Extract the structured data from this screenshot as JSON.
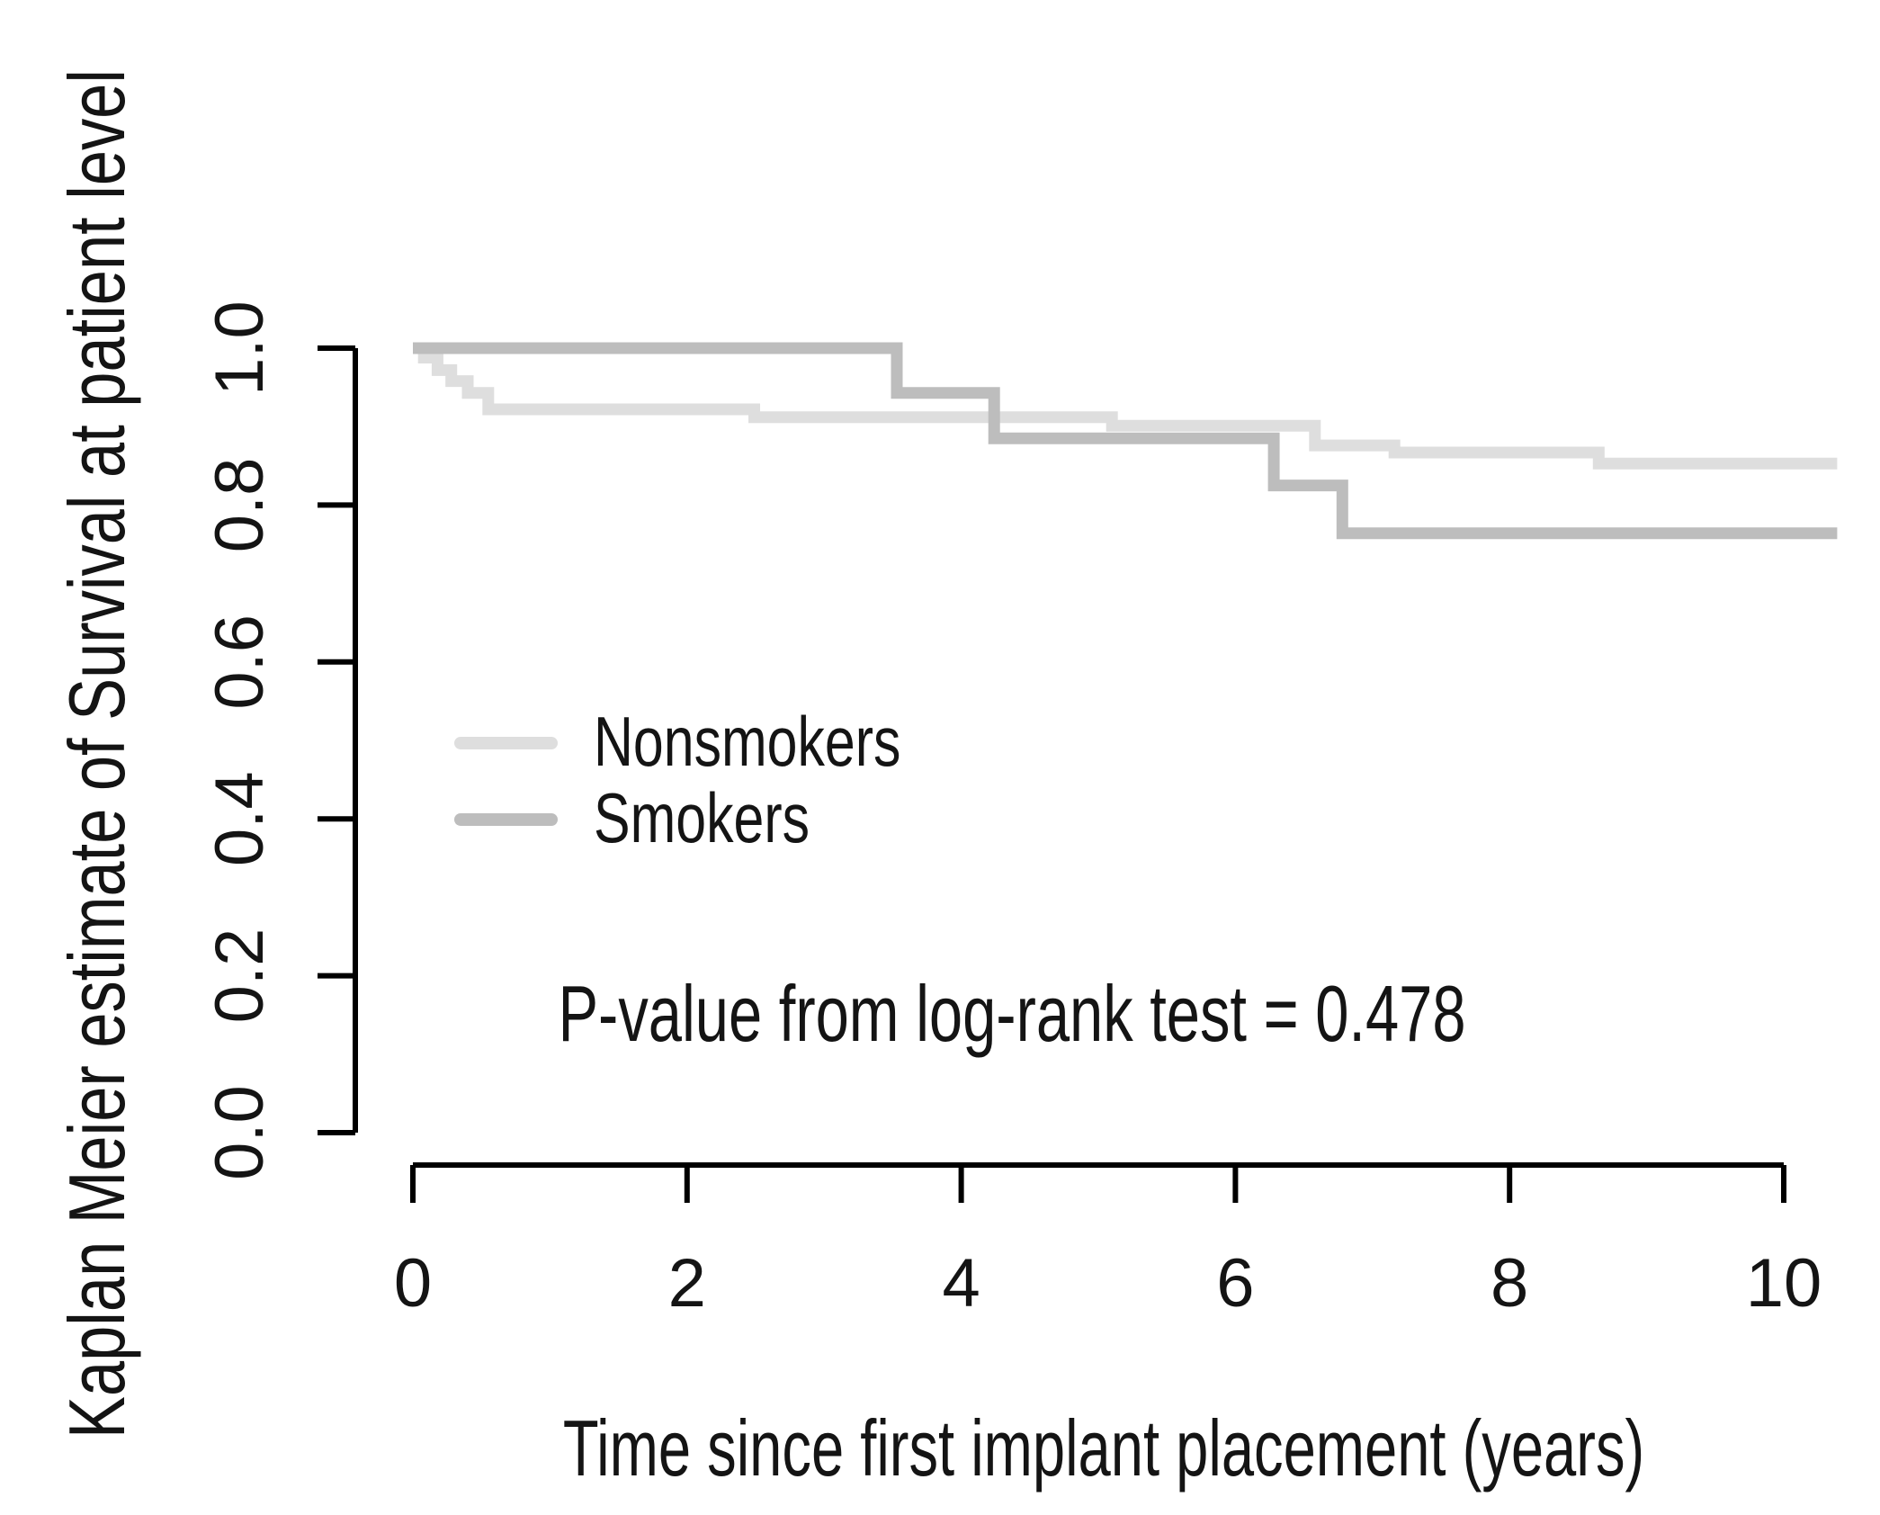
{
  "chart_data": {
    "type": "line",
    "subtype": "kaplan-meier-step",
    "title": "",
    "ylabel": "Kaplan Meier estimate of Survival at patient level",
    "xlabel": "Time since first implant placement (years)",
    "xlim": [
      0,
      10.4
    ],
    "ylim": [
      0.0,
      1.0
    ],
    "grid": false,
    "x_tick_labels": [
      "0",
      "2",
      "4",
      "6",
      "8",
      "10"
    ],
    "y_tick_labels": [
      "0.0",
      "0.2",
      "0.4",
      "0.6",
      "0.8",
      "1.0"
    ],
    "x_ticks": [
      0,
      2,
      4,
      6,
      8,
      10
    ],
    "y_ticks": [
      0.0,
      0.2,
      0.4,
      0.6,
      0.8,
      1.0
    ],
    "legend_position": "inside-left-middle",
    "annotation": "P-value from log-rank test = 0.478",
    "axis_color": "#000000",
    "text_color": "#141414",
    "series": [
      {
        "name": "Nonsmokers",
        "color": "#dedede",
        "points": [
          [
            0.0,
            1.0
          ],
          [
            0.08,
            0.988
          ],
          [
            0.18,
            0.972
          ],
          [
            0.28,
            0.958
          ],
          [
            0.4,
            0.943
          ],
          [
            0.55,
            0.922
          ],
          [
            2.49,
            0.912
          ],
          [
            5.1,
            0.901
          ],
          [
            6.58,
            0.876
          ],
          [
            7.16,
            0.867
          ],
          [
            8.65,
            0.853
          ],
          [
            10.39,
            0.853
          ]
        ]
      },
      {
        "name": "Smokers",
        "color": "#bdbdbd",
        "points": [
          [
            0.0,
            1.0
          ],
          [
            3.53,
            0.943
          ],
          [
            4.24,
            0.885
          ],
          [
            6.28,
            0.825
          ],
          [
            6.78,
            0.764
          ],
          [
            10.39,
            0.764
          ]
        ]
      }
    ]
  }
}
